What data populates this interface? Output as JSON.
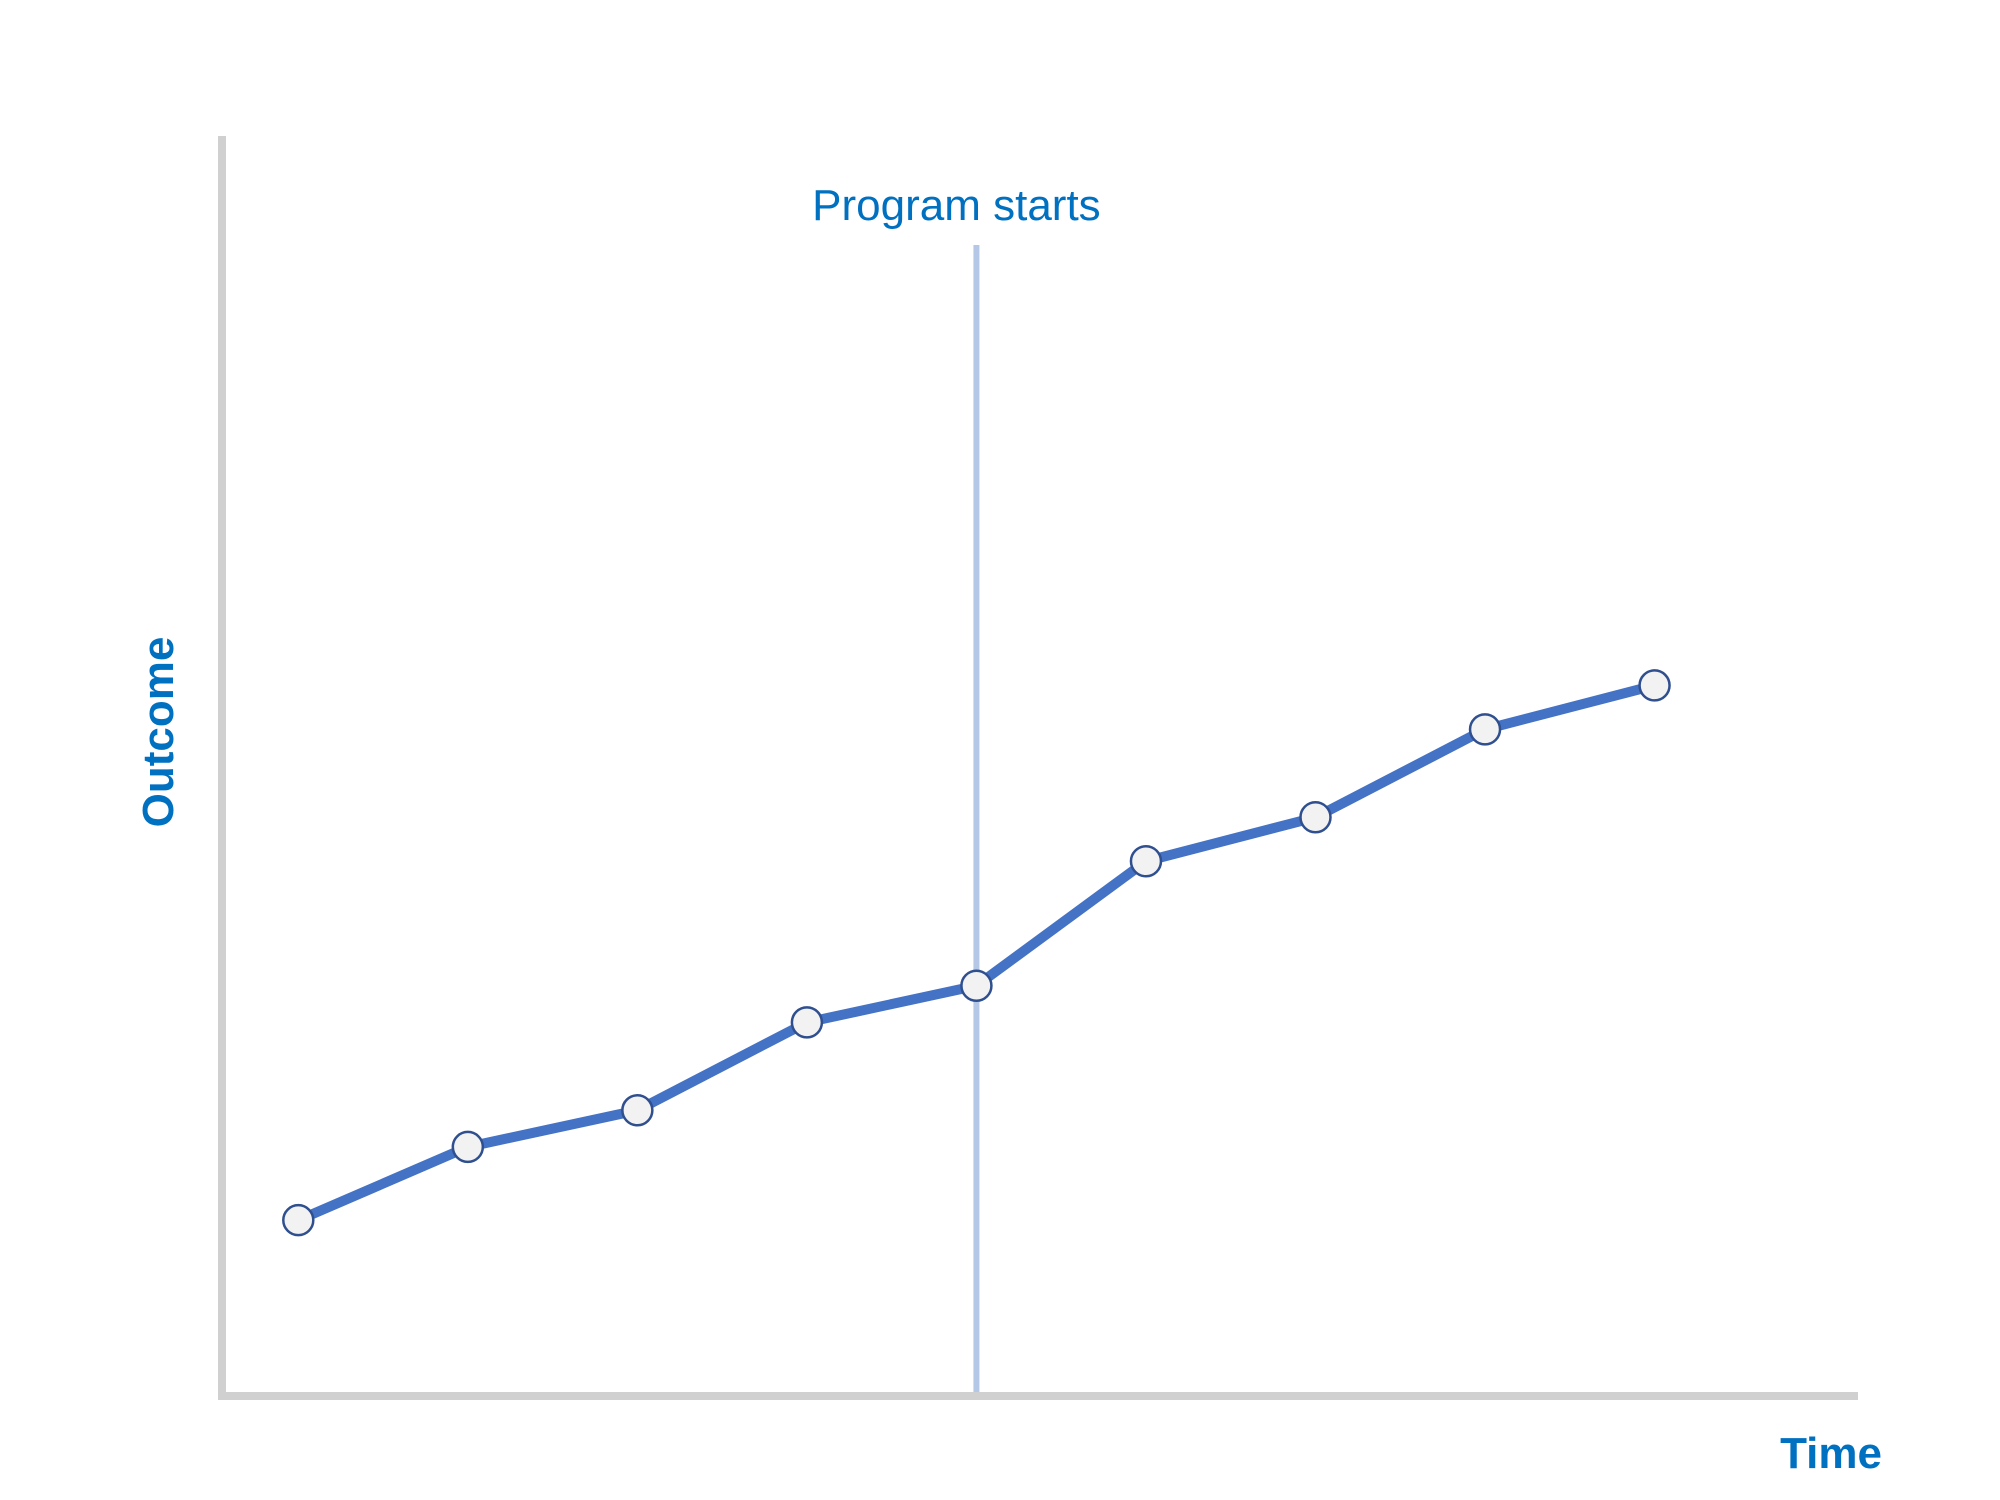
{
  "chart_data": {
    "type": "line",
    "xlabel": "Time",
    "ylabel": "Outcome",
    "x": [
      1,
      2,
      3,
      4,
      5,
      6,
      7,
      8,
      9
    ],
    "series": [
      {
        "values": [
          2.3,
          3.3,
          3.8,
          5.0,
          5.5,
          7.2,
          7.8,
          9.0,
          9.6
        ]
      }
    ],
    "xlim": [
      0.55,
      10.2
    ],
    "ylim": [
      -0.1,
      17.1
    ],
    "annotations": [
      {
        "type": "vertical-line",
        "x": 5,
        "label": "Program starts"
      }
    ],
    "grid": false,
    "legend": "none",
    "colors": {
      "axis": "#d0d0d0",
      "line": "#4472c4",
      "marker_fill": "#f2f2f2",
      "marker_stroke": "#2f4f8f",
      "annotation_line": "#b4c7e7",
      "text": "#0070c0"
    }
  }
}
